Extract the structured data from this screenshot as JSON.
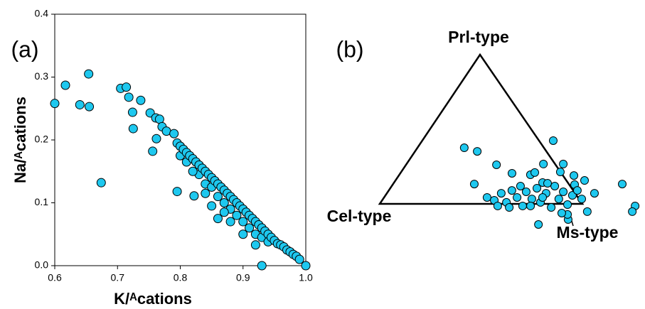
{
  "chart_data": [
    {
      "type": "scatter",
      "panel_label": "(a)",
      "xlabel": "K/ᴬcations",
      "ylabel": "Na/ᴬcations",
      "color": "#1ec8ef",
      "xlim": [
        0.6,
        1.0
      ],
      "ylim": [
        0,
        0.4
      ],
      "xticks": [
        0.6,
        0.7,
        0.8,
        0.9,
        {
          "value": 1,
          "label": "1.0"
        }
      ],
      "yticks": [
        {
          "value": 0,
          "label": "0.0"
        },
        0.1,
        0.2,
        0.3,
        0.4
      ],
      "x": [
        0.6,
        0.617,
        0.64,
        0.654,
        0.655,
        0.674,
        0.705,
        0.714,
        0.718,
        0.724,
        0.725,
        0.737,
        0.752,
        0.761,
        0.767,
        0.762,
        0.756,
        0.771,
        0.778,
        0.79,
        0.795,
        0.822,
        0.795,
        0.8,
        0.8,
        0.805,
        0.81,
        0.81,
        0.815,
        0.82,
        0.825,
        0.83,
        0.83,
        0.835,
        0.84,
        0.84,
        0.845,
        0.85,
        0.85,
        0.855,
        0.86,
        0.86,
        0.865,
        0.87,
        0.87,
        0.875,
        0.88,
        0.88,
        0.885,
        0.89,
        0.89,
        0.895,
        0.9,
        0.9,
        0.905,
        0.91,
        0.91,
        0.915,
        0.92,
        0.92,
        0.925,
        0.93,
        0.93,
        0.935,
        0.94,
        0.94,
        0.945,
        0.95,
        0.955,
        0.96,
        0.965,
        0.97,
        0.975,
        0.98,
        0.985,
        0.99,
        0.93,
        1.0,
        0.92,
        0.85,
        0.88,
        0.86,
        0.9,
        0.84,
        0.82,
        0.87
      ],
      "values": [
        0.258,
        0.287,
        0.256,
        0.305,
        0.253,
        0.132,
        0.282,
        0.284,
        0.268,
        0.244,
        0.218,
        0.263,
        0.243,
        0.235,
        0.233,
        0.202,
        0.182,
        0.221,
        0.214,
        0.21,
        0.118,
        0.111,
        0.195,
        0.19,
        0.175,
        0.185,
        0.18,
        0.165,
        0.175,
        0.17,
        0.165,
        0.16,
        0.145,
        0.155,
        0.15,
        0.13,
        0.145,
        0.14,
        0.125,
        0.135,
        0.13,
        0.11,
        0.125,
        0.12,
        0.1,
        0.115,
        0.11,
        0.09,
        0.105,
        0.1,
        0.08,
        0.095,
        0.09,
        0.07,
        0.085,
        0.08,
        0.06,
        0.075,
        0.07,
        0.05,
        0.065,
        0.06,
        0.045,
        0.055,
        0.05,
        0.038,
        0.045,
        0.04,
        0.035,
        0.033,
        0.03,
        0.025,
        0.022,
        0.018,
        0.015,
        0.01,
        0,
        0,
        0.033,
        0.095,
        0.07,
        0.075,
        0.05,
        0.115,
        0.15,
        0.085
      ]
    },
    {
      "type": "ternary",
      "panel_label": "(b)",
      "color": "#1ec8ef",
      "vertices": {
        "top": "Prl-type",
        "left": "Cel-type",
        "right": "Ms-type"
      },
      "prl": [
        0.376,
        0.352,
        0.133,
        0.262,
        0.424,
        0.267,
        0.267,
        0.19,
        0.143,
        0.205,
        0.133,
        -0.014,
        -0.052,
        -0.105,
        -0.071,
        -0.138,
        -0.052,
        0.071,
        0.157,
        0.129,
        0.195,
        0.043,
        0.024,
        0.071,
        0.01,
        0.09,
        0.043,
        -0.014,
        0.081,
        0.033,
        0.105,
        0.01,
        0.071,
        -0.024,
        0.119,
        0.033,
        0.081,
        -0.005,
        0.057,
        0.09,
        0.033,
        -0.014,
        0.119,
        0.043,
        -0.014,
        -0.062,
        0.138,
        0.21,
        0.214,
        -0.024
      ],
      "ms": [
        0.229,
        0.305,
        0.4,
        0.445,
        0.644,
        0.674,
        0.772,
        0.863,
        0.732,
        0.55,
        1.13,
        1.267,
        1.272,
        0.982,
        0.962,
        0.852,
        1.05,
        1.024,
        0.932,
        0.897,
        0.646,
        0.508,
        0.553,
        0.564,
        0.62,
        0.607,
        0.656,
        0.712,
        0.682,
        0.734,
        0.723,
        0.788,
        0.785,
        0.858,
        0.804,
        0.867,
        0.865,
        0.929,
        0.922,
        0.93,
        0.98,
        0.589,
        0.635,
        0.782,
        0.751,
        0.929,
        0.759,
        0.66,
        0.784,
        0.651
      ]
    }
  ]
}
